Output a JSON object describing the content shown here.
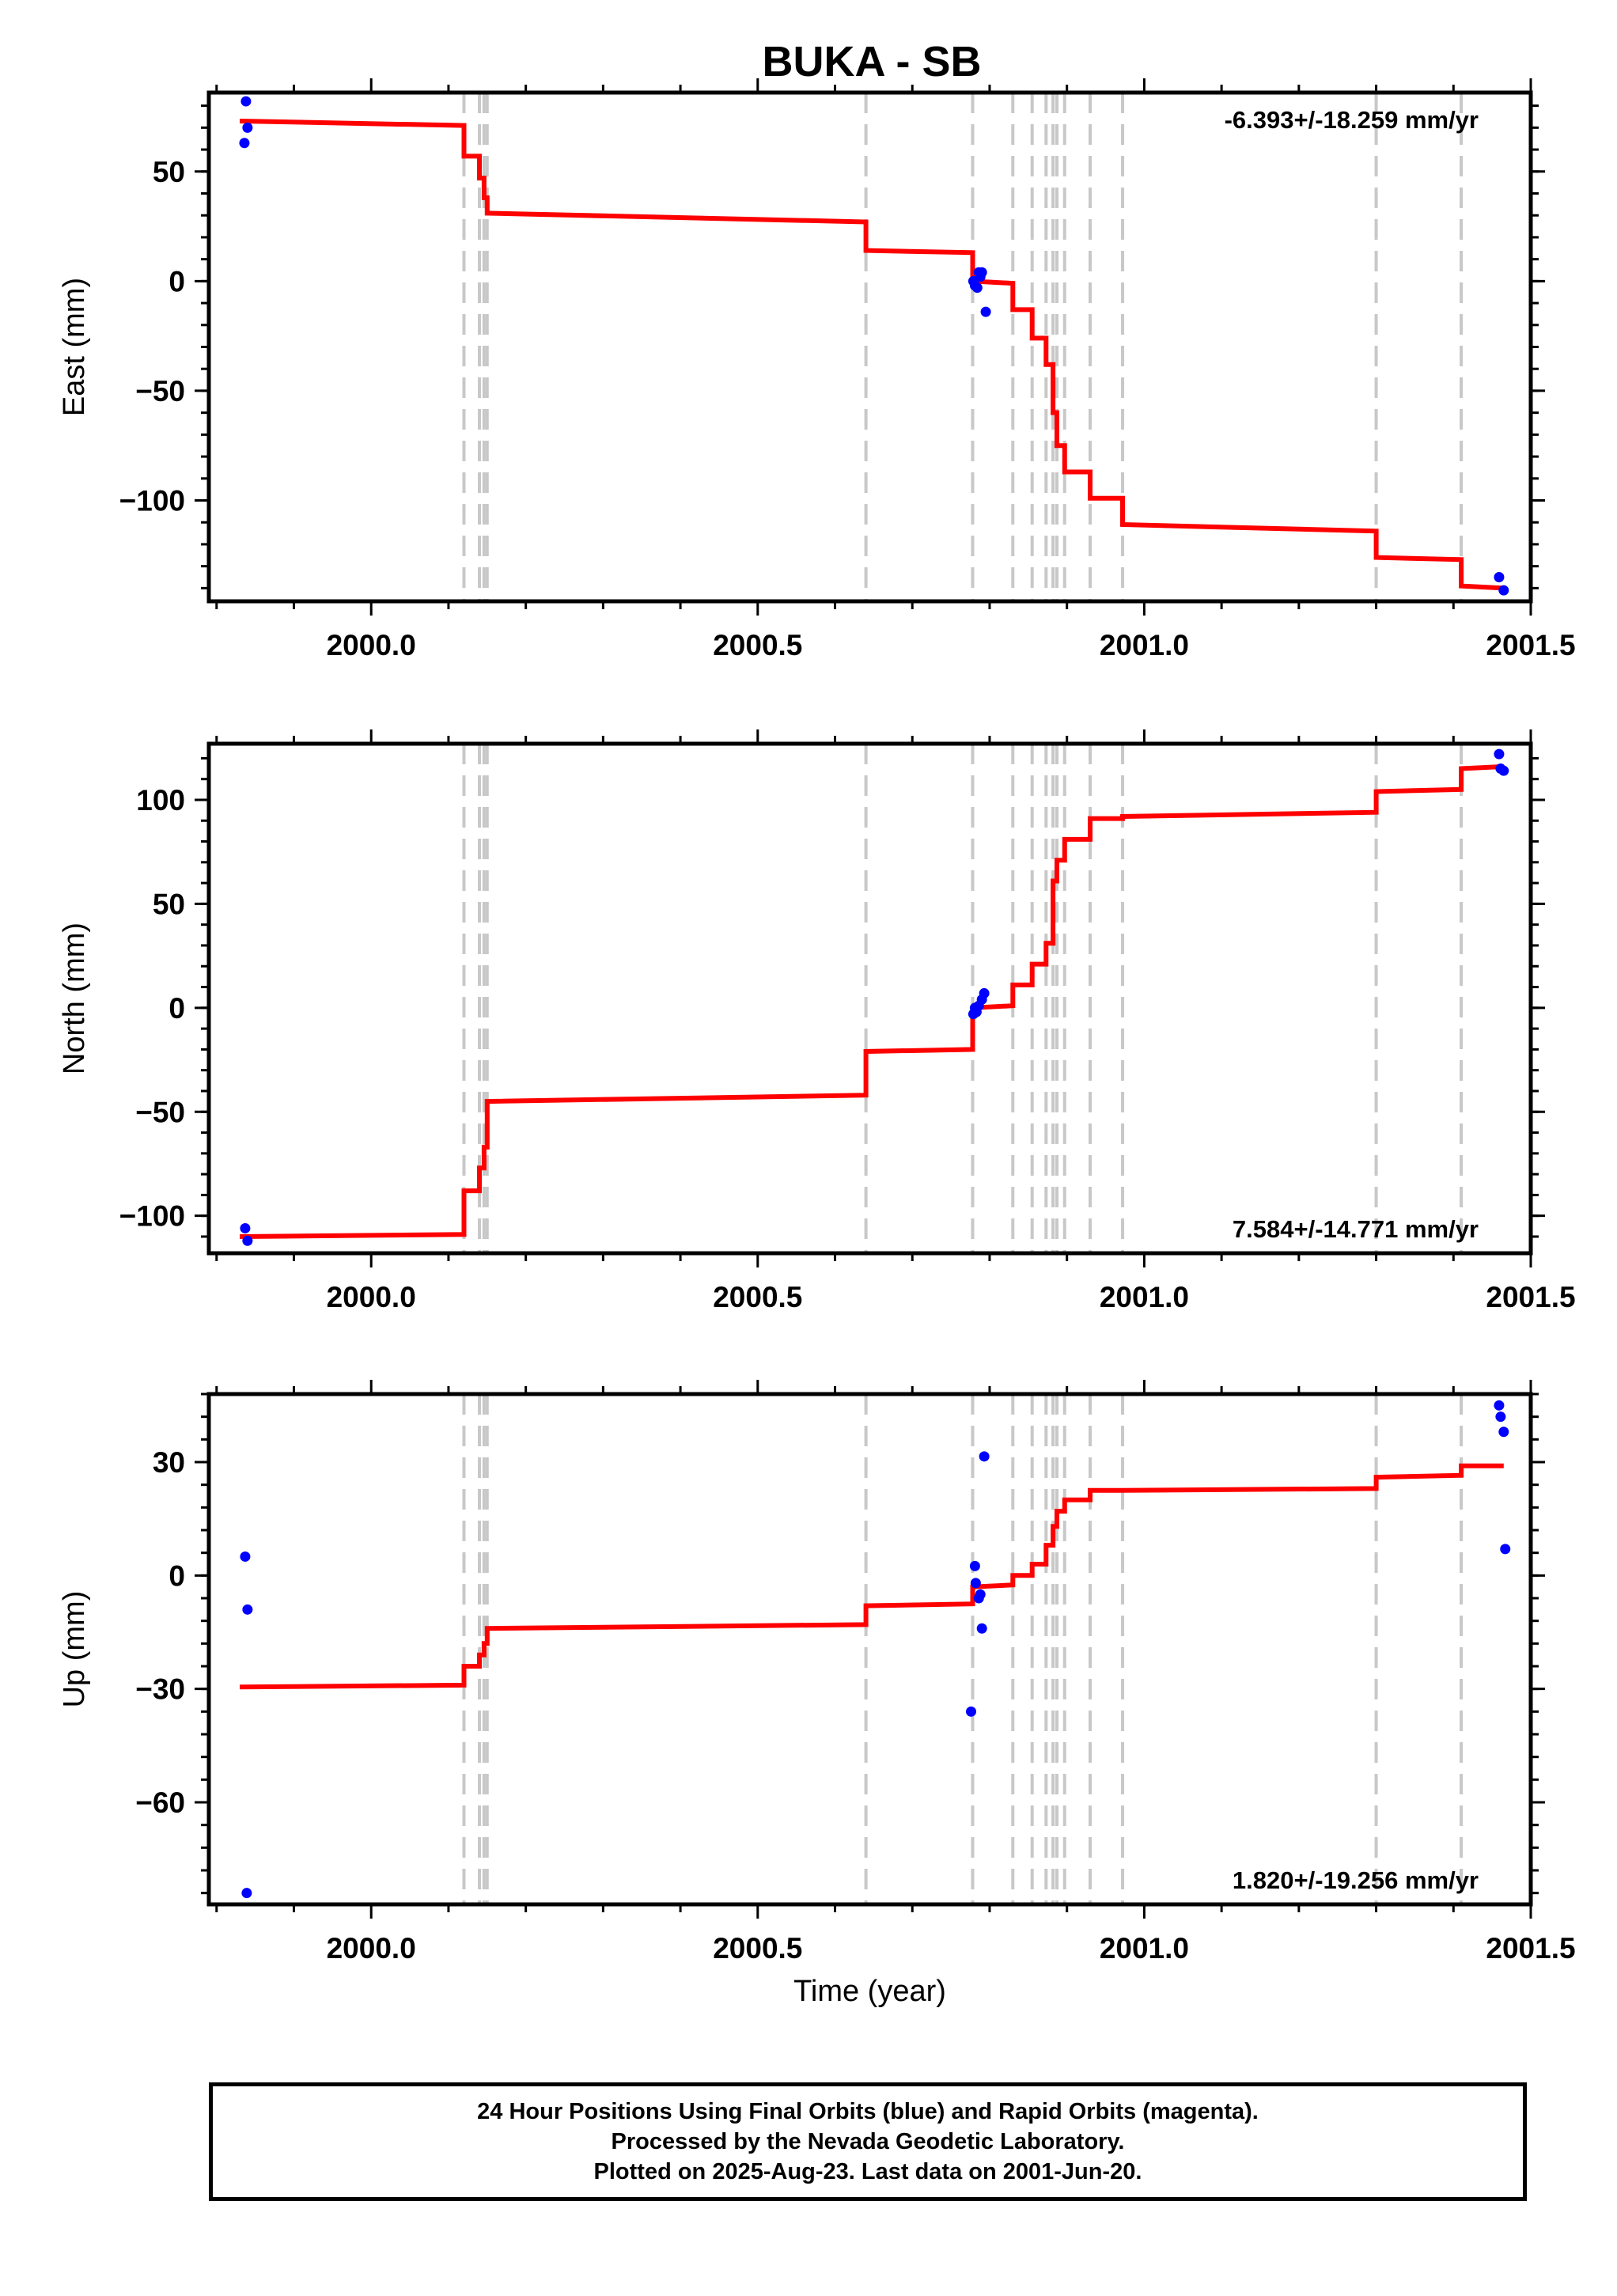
{
  "title": "BUKA - SB",
  "colors": {
    "model": "#ff0000",
    "final_obs": "#0000ff",
    "steps": "#c8c8c8",
    "frame": "#000000"
  },
  "chart_data": [
    {
      "type": "line",
      "panel": "east",
      "ylabel": "East (mm)",
      "xlabel": "",
      "xlim": [
        1999.79,
        2001.5
      ],
      "ylim": [
        -146,
        86
      ],
      "xticks": [
        2000.0,
        2000.5,
        2001.0,
        2001.5
      ],
      "xtick_labels": [
        "2000.0",
        "2000.5",
        "2001.0",
        "2001.5"
      ],
      "yticks": [
        50,
        0,
        -50,
        -100
      ],
      "ytick_labels": [
        "50",
        "0",
        "−50",
        "−100"
      ],
      "rate_label": "-6.393+/-18.259 mm/yr",
      "rate_position": "top-right",
      "step_dates": [
        2000.12,
        2000.14,
        2000.146,
        2000.15,
        2000.64,
        2000.778,
        2000.83,
        2000.855,
        2000.873,
        2000.882,
        2000.887,
        2000.897,
        2000.93,
        2000.972,
        2001.3,
        2001.41
      ],
      "model": {
        "x": [
          1999.83,
          2000.12,
          2000.12,
          2000.14,
          2000.14,
          2000.146,
          2000.146,
          2000.15,
          2000.15,
          2000.64,
          2000.64,
          2000.778,
          2000.778,
          2000.83,
          2000.83,
          2000.855,
          2000.855,
          2000.873,
          2000.873,
          2000.882,
          2000.882,
          2000.887,
          2000.887,
          2000.897,
          2000.897,
          2000.93,
          2000.93,
          2000.972,
          2000.972,
          2001.3,
          2001.3,
          2001.41,
          2001.41,
          2001.465
        ],
        "y": [
          73,
          71,
          57,
          57,
          47,
          47,
          38,
          38,
          31,
          27,
          14,
          13,
          0,
          -1,
          -13,
          -13,
          -26,
          -26,
          -38,
          -38,
          -60,
          -60,
          -75,
          -75,
          -87,
          -87,
          -99,
          -99,
          -111,
          -114,
          -126,
          -127,
          -139,
          -140
        ]
      },
      "final_orbits": {
        "x": [
          1999.838,
          1999.84,
          1999.836,
          2000.779,
          2000.781,
          2000.786,
          2000.788,
          2000.79,
          2000.784,
          2000.795,
          2001.459,
          2001.465
        ],
        "y": [
          82,
          70,
          63,
          0,
          -2,
          4,
          2,
          4,
          -3,
          -14,
          -135,
          -141
        ]
      }
    },
    {
      "type": "line",
      "panel": "north",
      "ylabel": "North (mm)",
      "xlabel": "",
      "xlim": [
        1999.79,
        2001.5
      ],
      "ylim": [
        -118,
        127
      ],
      "xticks": [
        2000.0,
        2000.5,
        2001.0,
        2001.5
      ],
      "xtick_labels": [
        "2000.0",
        "2000.5",
        "2001.0",
        "2001.5"
      ],
      "yticks": [
        100,
        50,
        0,
        -50,
        -100
      ],
      "ytick_labels": [
        "100",
        "50",
        "0",
        "−50",
        "−100"
      ],
      "rate_label": "7.584+/-14.771 mm/yr",
      "rate_position": "bottom-right",
      "step_dates": [
        2000.12,
        2000.14,
        2000.146,
        2000.15,
        2000.64,
        2000.778,
        2000.83,
        2000.855,
        2000.873,
        2000.882,
        2000.887,
        2000.897,
        2000.93,
        2000.972,
        2001.3,
        2001.41
      ],
      "model": {
        "x": [
          1999.83,
          2000.12,
          2000.12,
          2000.14,
          2000.14,
          2000.146,
          2000.146,
          2000.15,
          2000.15,
          2000.64,
          2000.64,
          2000.778,
          2000.778,
          2000.83,
          2000.83,
          2000.855,
          2000.855,
          2000.873,
          2000.873,
          2000.882,
          2000.882,
          2000.887,
          2000.887,
          2000.897,
          2000.897,
          2000.93,
          2000.93,
          2000.972,
          2000.972,
          2001.3,
          2001.3,
          2001.41,
          2001.41,
          2001.465
        ],
        "y": [
          -110,
          -109,
          -88,
          -88,
          -77,
          -77,
          -67,
          -67,
          -45,
          -42,
          -21,
          -20,
          0,
          1,
          11,
          11,
          21,
          21,
          31,
          31,
          61,
          61,
          71,
          71,
          81,
          81,
          91,
          91,
          92,
          94,
          104,
          105,
          115,
          116
        ]
      },
      "final_orbits": {
        "x": [
          1999.837,
          1999.84,
          2000.779,
          2000.781,
          2000.786,
          2000.79,
          2000.793,
          2000.783,
          2001.459,
          2001.461,
          2001.465
        ],
        "y": [
          -106,
          -112,
          -3,
          0,
          1,
          4,
          7,
          -2,
          122,
          115,
          114
        ]
      }
    },
    {
      "type": "line",
      "panel": "up",
      "ylabel": "Up (mm)",
      "xlabel": "Time (year)",
      "xlim": [
        1999.79,
        2001.5
      ],
      "ylim": [
        -87,
        48
      ],
      "xticks": [
        2000.0,
        2000.5,
        2001.0,
        2001.5
      ],
      "xtick_labels": [
        "2000.0",
        "2000.5",
        "2001.0",
        "2001.5"
      ],
      "yticks": [
        30,
        0,
        -30,
        -60
      ],
      "ytick_labels": [
        "30",
        "0",
        "−30",
        "−60"
      ],
      "rate_label": "1.820+/-19.256 mm/yr",
      "rate_position": "bottom-right",
      "step_dates": [
        2000.12,
        2000.14,
        2000.146,
        2000.15,
        2000.64,
        2000.778,
        2000.83,
        2000.855,
        2000.873,
        2000.882,
        2000.887,
        2000.897,
        2000.93,
        2000.972,
        2001.3,
        2001.41
      ],
      "model": {
        "x": [
          1999.83,
          2000.12,
          2000.12,
          2000.14,
          2000.14,
          2000.146,
          2000.146,
          2000.15,
          2000.15,
          2000.64,
          2000.64,
          2000.778,
          2000.778,
          2000.83,
          2000.83,
          2000.855,
          2000.855,
          2000.873,
          2000.873,
          2000.882,
          2000.882,
          2000.887,
          2000.887,
          2000.897,
          2000.897,
          2000.93,
          2000.93,
          2000.972,
          2000.972,
          2001.3,
          2001.3,
          2001.41,
          2001.41,
          2001.465
        ],
        "y": [
          -29.5,
          -29,
          -24,
          -24,
          -21,
          -21,
          -18,
          -18,
          -14,
          -13,
          -8,
          -7.5,
          -3,
          -2.5,
          0,
          0,
          3,
          3,
          8,
          8,
          13,
          13,
          17,
          17,
          20,
          20,
          22.5,
          22.5,
          22.5,
          23,
          26,
          26.5,
          29,
          29
        ]
      },
      "final_orbits": {
        "x": [
          1999.837,
          1999.84,
          1999.839,
          2000.776,
          2000.781,
          2000.782,
          2000.786,
          2000.79,
          2000.793,
          2000.788,
          2001.459,
          2001.461,
          2001.465,
          2001.467
        ],
        "y": [
          5,
          -9,
          -84,
          -36,
          2.5,
          -2,
          -6,
          -14,
          31.5,
          -5,
          45,
          42,
          38,
          7
        ]
      }
    }
  ],
  "footer": {
    "line1": "24 Hour Positions Using Final Orbits (blue) and Rapid Orbits (magenta).",
    "line2": "Processed by the Nevada Geodetic Laboratory.",
    "line3": "Plotted on 2025-Aug-23. Last data on 2001-Jun-20."
  }
}
